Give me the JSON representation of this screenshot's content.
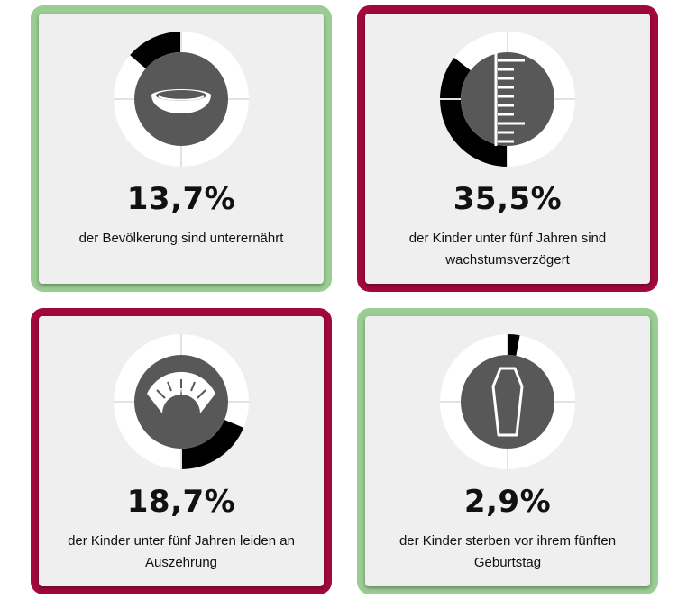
{
  "colors": {
    "good": "#9acd93",
    "bad": "#a1093a",
    "ring_bg": "#ffffff",
    "ring_fill": "#000000",
    "center": "#585858",
    "icon": "#ffffff"
  },
  "cards": [
    {
      "value": "13,7%",
      "label": "der Bevölkerung sind unterernährt",
      "fraction": 0.137,
      "status": "good",
      "icon": "bowl-icon"
    },
    {
      "value": "35,5%",
      "label": "der Kinder unter fünf Jahren sind wachstumsverzögert",
      "fraction": 0.355,
      "status": "bad",
      "icon": "height-ruler-icon"
    },
    {
      "value": "18,7%",
      "label": "der Kinder unter fünf Jahren leiden an Auszehrung",
      "fraction": 0.187,
      "status": "bad",
      "icon": "scale-icon"
    },
    {
      "value": "2,9%",
      "label": "der Kinder sterben vor ihrem fünften Geburtstag",
      "fraction": 0.029,
      "status": "good",
      "icon": "coffin-icon"
    }
  ]
}
